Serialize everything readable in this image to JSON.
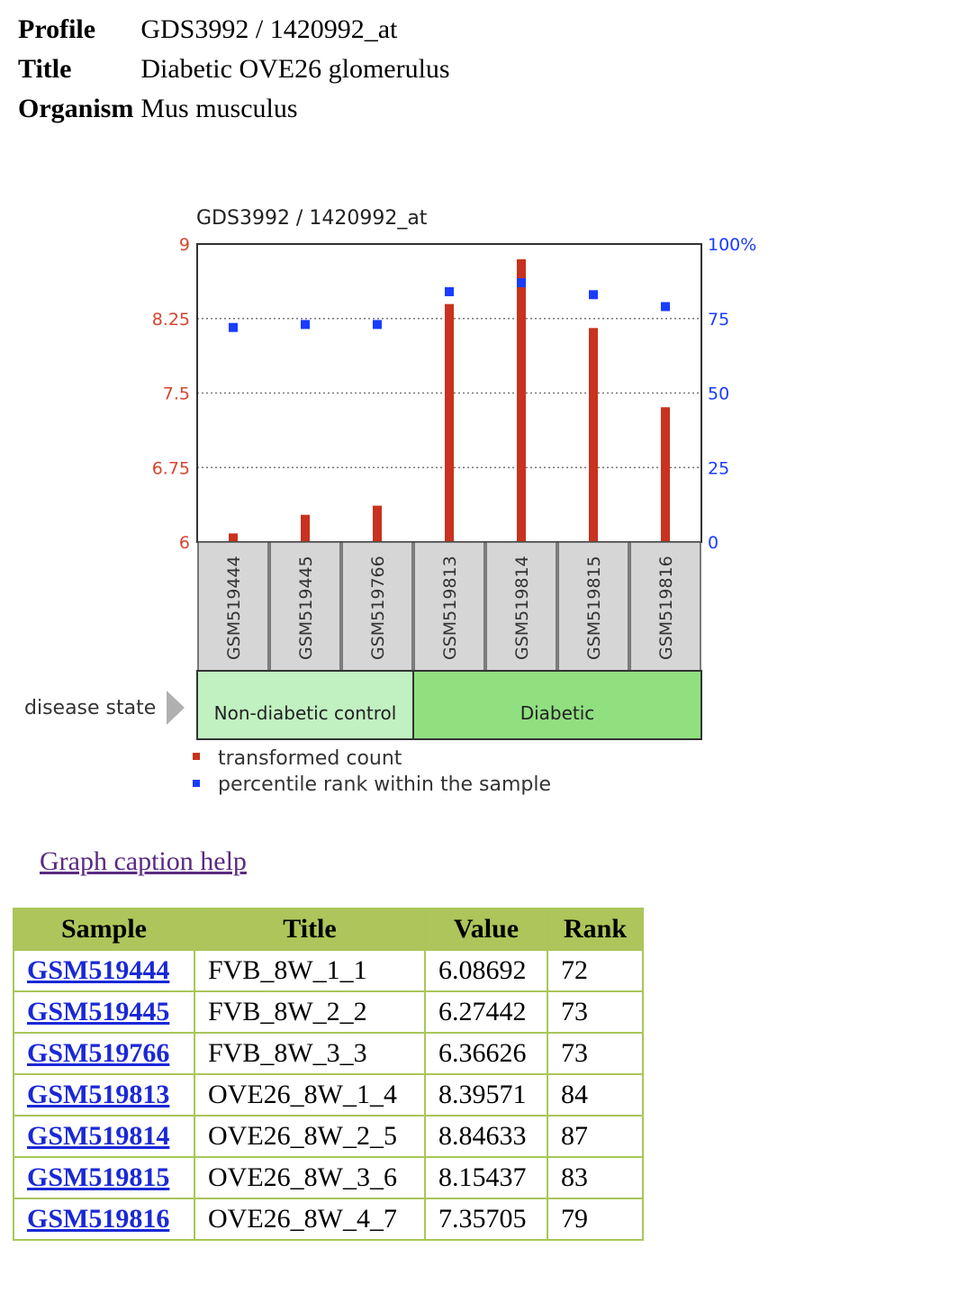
{
  "profile": {
    "rows": [
      {
        "label": "Profile",
        "value": "GDS3992 / 1420992_at"
      },
      {
        "label": "Title",
        "value": "Diabetic OVE26 glomerulus"
      },
      {
        "label": "Organism",
        "value": "Mus musculus"
      }
    ]
  },
  "chart_data": {
    "type": "bar",
    "title": "GDS3992 / 1420992_at",
    "categories": [
      "GSM519444",
      "GSM519445",
      "GSM519766",
      "GSM519813",
      "GSM519814",
      "GSM519815",
      "GSM519816"
    ],
    "series": [
      {
        "name": "transformed count",
        "axis": "left",
        "color": "#c8321e",
        "values": [
          6.08692,
          6.27442,
          6.36626,
          8.39571,
          8.84633,
          8.15437,
          7.35705
        ]
      },
      {
        "name": "percentile rank within the sample",
        "axis": "right",
        "color": "#1a3cff",
        "values": [
          72,
          73,
          73,
          84,
          87,
          83,
          79
        ]
      }
    ],
    "y_left": {
      "range": [
        6,
        9
      ],
      "ticks": [
        "9",
        "8.25",
        "7.5",
        "6.75",
        "6"
      ],
      "color": "#d9442f"
    },
    "y_right": {
      "range": [
        0,
        100
      ],
      "ticks": [
        "100%",
        "75",
        "50",
        "25",
        "0"
      ],
      "color": "#1a3cff"
    },
    "grid": true,
    "groups": {
      "label": "disease state",
      "items": [
        {
          "name": "Non-diabetic control",
          "count": 3,
          "color": "#c1f0c1"
        },
        {
          "name": "Diabetic",
          "count": 4,
          "color": "#90e080"
        }
      ]
    },
    "legend": [
      "transformed count",
      "percentile rank within the sample"
    ]
  },
  "help_link": "Graph caption help",
  "table": {
    "headers": [
      "Sample",
      "Title",
      "Value",
      "Rank"
    ],
    "rows": [
      {
        "sample": "GSM519444",
        "title": "FVB_8W_1_1",
        "value": "6.08692",
        "rank": "72"
      },
      {
        "sample": "GSM519445",
        "title": "FVB_8W_2_2",
        "value": "6.27442",
        "rank": "73"
      },
      {
        "sample": "GSM519766",
        "title": "FVB_8W_3_3",
        "value": "6.36626",
        "rank": "73"
      },
      {
        "sample": "GSM519813",
        "title": "OVE26_8W_1_4",
        "value": "8.39571",
        "rank": "84"
      },
      {
        "sample": "GSM519814",
        "title": "OVE26_8W_2_5",
        "value": "8.84633",
        "rank": "87"
      },
      {
        "sample": "GSM519815",
        "title": "OVE26_8W_3_6",
        "value": "8.15437",
        "rank": "83"
      },
      {
        "sample": "GSM519816",
        "title": "OVE26_8W_4_7",
        "value": "7.35705",
        "rank": "79"
      }
    ]
  }
}
